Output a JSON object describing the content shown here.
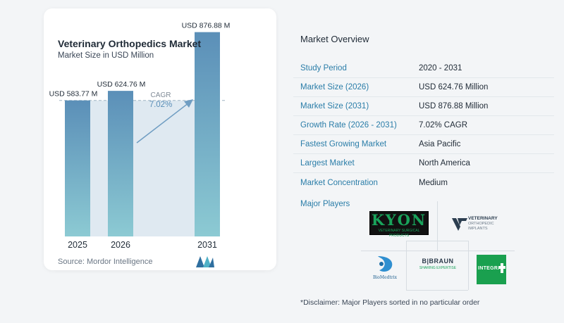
{
  "chart_data": {
    "type": "bar",
    "title": "Veterinary Orthopedics Market",
    "subtitle": "Market Size in USD Million",
    "categories": [
      "2025",
      "2026",
      "2031"
    ],
    "values": [
      583.77,
      624.76,
      876.88
    ],
    "data_labels": [
      "USD 583.77 M",
      "USD 624.76 M",
      "USD 876.88 M"
    ],
    "cagr_label": "CAGR",
    "cagr_value": "7.02%",
    "ylim": [
      0,
      900
    ],
    "colors": {
      "bar_top": "#5b8fb8",
      "bar_bottom": "#8ccad3",
      "band": "#dfe9f1",
      "arrow": "#6f9dc2"
    }
  },
  "source": "Source:  Mordor Intelligence",
  "overview": {
    "title": "Market Overview",
    "rows": [
      {
        "label": "Study Period",
        "value": "2020 - 2031"
      },
      {
        "label": "Market Size (2026)",
        "value": "USD 624.76 Million"
      },
      {
        "label": "Market Size (2031)",
        "value": "USD 876.88 Million"
      },
      {
        "label": "Growth Rate (2026 - 2031)",
        "value": "7.02% CAGR"
      },
      {
        "label": "Fastest Growing Market",
        "value": "Asia Pacific"
      },
      {
        "label": "Largest Market",
        "value": "North America"
      },
      {
        "label": "Market Concentration",
        "value": "Medium"
      }
    ]
  },
  "players": {
    "title": "Major Players",
    "kyon": {
      "name": "KYON",
      "tagline": "VETERINARY SURGICAL PRODUCTS"
    },
    "vop": {
      "line1": "VETERINARY",
      "line2": "ORTHOPEDIC",
      "line3": "IMPLANTS"
    },
    "bioMedtrix": {
      "name": "BioMedtrix"
    },
    "bbraun": {
      "name": "B|BRAUN",
      "tagline": "SHARING EXPERTISE"
    },
    "integra": {
      "name": "INTEGRA"
    }
  },
  "disclaimer": "*Disclaimer: Major Players sorted in no particular order"
}
